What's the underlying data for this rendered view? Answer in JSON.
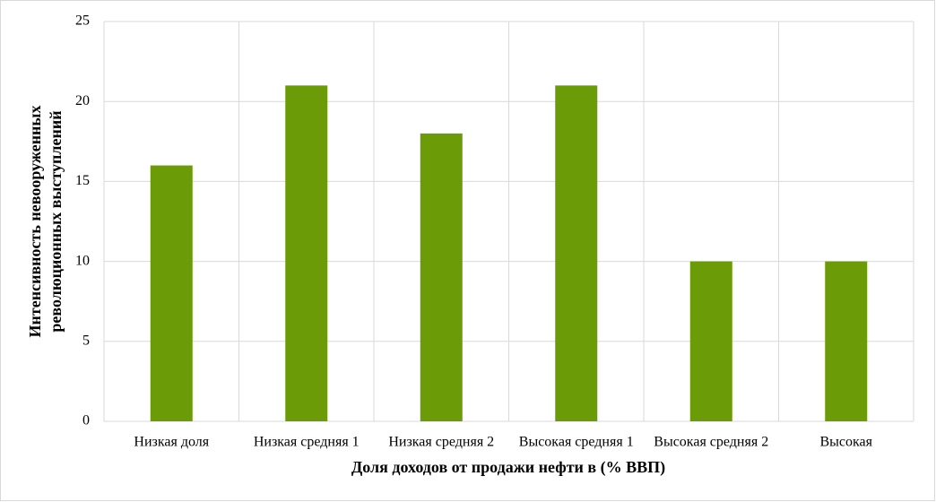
{
  "chart_data": {
    "type": "bar",
    "xlabel": "Доля доходов от продажи нефти в (% ВВП)",
    "ylabel": [
      "Интенсивность невооруженных",
      "революционных выступлений"
    ],
    "categories": [
      "Низкая доля",
      "Низкая средняя 1",
      "Низкая средняя 2",
      "Высокая средняя 1",
      "Высокая средняя 2",
      "Высокая"
    ],
    "values": [
      16,
      21,
      18,
      21,
      10,
      10
    ],
    "color": "#6b9b07",
    "ylim": [
      0,
      25
    ],
    "yticks": [
      0,
      5,
      10,
      15,
      20,
      25
    ],
    "grid": true
  }
}
